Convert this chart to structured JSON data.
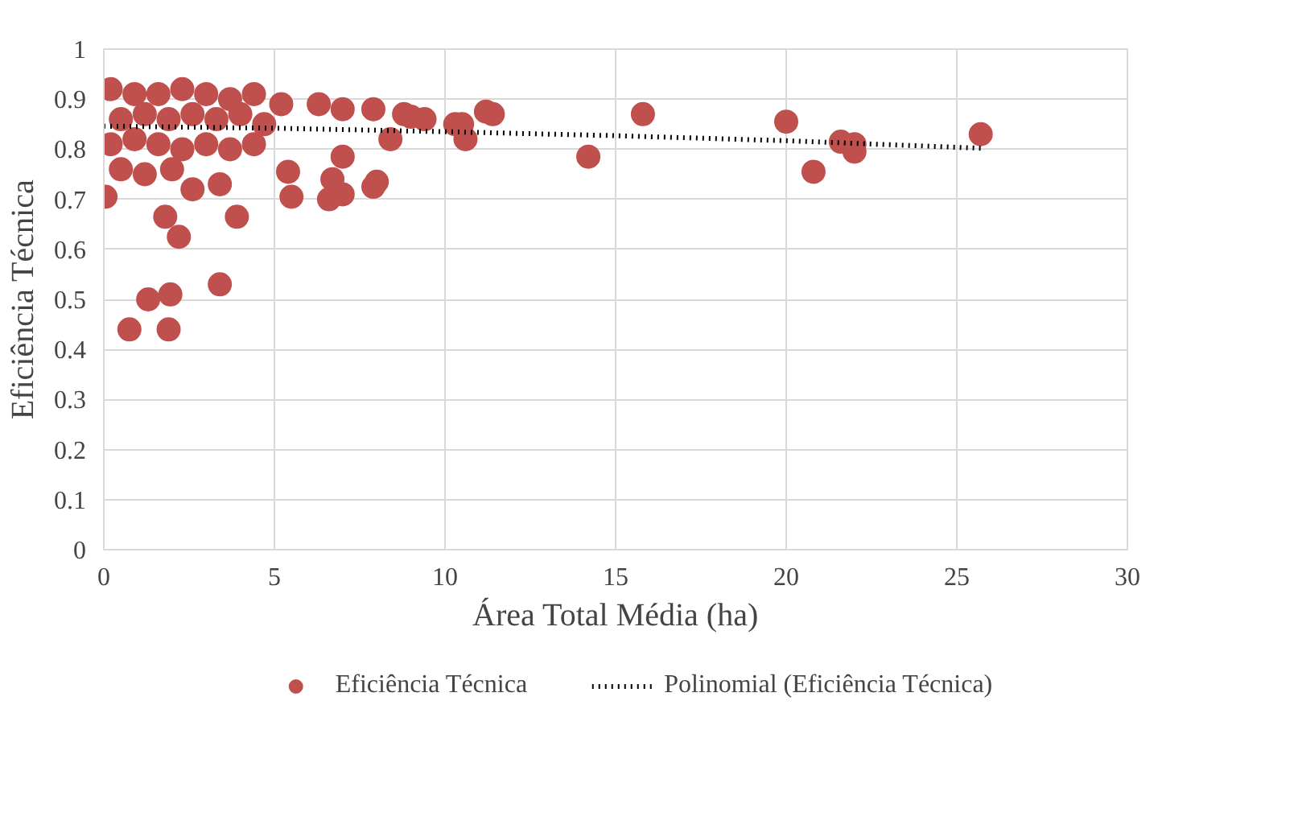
{
  "chart_data": {
    "type": "scatter",
    "xlabel": "Área Total Média (ha)",
    "ylabel": "Eficiência Técnica",
    "xlim": [
      0,
      30
    ],
    "xticks": [
      0,
      5,
      10,
      15,
      20,
      25,
      30
    ],
    "ylim": [
      0,
      1
    ],
    "yticks": [
      0,
      0.1,
      0.2,
      0.3,
      0.4,
      0.5,
      0.6,
      0.7,
      0.8,
      0.9,
      1
    ],
    "grid": true,
    "legend": "bottom",
    "series": [
      {
        "name": "Eficiência Técnica",
        "marker": "circle",
        "color": "#c0504d",
        "x": [
          0.05,
          0.75,
          1.9,
          1.3,
          1.95,
          3.4,
          1.8,
          2.2,
          3.9,
          2.6,
          3.4,
          5.5,
          6.6,
          7.0,
          7.9,
          8.0,
          6.7,
          5.4,
          7.0,
          8.4,
          10.6,
          14.2,
          15.8,
          20.0,
          20.8,
          21.6,
          22.0,
          22.0,
          25.7,
          11.2,
          11.4,
          10.3,
          10.5,
          9.4,
          9.0,
          8.8,
          7.9,
          7.0,
          6.3,
          5.2,
          0.2,
          0.9,
          1.6,
          2.3,
          3.0,
          3.7,
          4.4,
          0.5,
          1.2,
          1.9,
          2.6,
          3.3,
          4.0,
          4.7,
          0.2,
          0.9,
          1.6,
          2.3,
          3.0,
          3.7,
          4.4,
          0.5,
          1.2,
          2.0
        ],
        "values": [
          0.705,
          0.44,
          0.44,
          0.5,
          0.51,
          0.53,
          0.665,
          0.625,
          0.665,
          0.72,
          0.73,
          0.705,
          0.7,
          0.71,
          0.725,
          0.735,
          0.74,
          0.755,
          0.785,
          0.82,
          0.82,
          0.785,
          0.87,
          0.855,
          0.755,
          0.815,
          0.81,
          0.795,
          0.83,
          0.875,
          0.87,
          0.85,
          0.85,
          0.86,
          0.865,
          0.87,
          0.88,
          0.88,
          0.89,
          0.89,
          0.92,
          0.91,
          0.91,
          0.92,
          0.91,
          0.9,
          0.91,
          0.86,
          0.87,
          0.86,
          0.87,
          0.86,
          0.87,
          0.85,
          0.81,
          0.82,
          0.81,
          0.8,
          0.81,
          0.8,
          0.81,
          0.76,
          0.75,
          0.76
        ]
      },
      {
        "name": "Polinomial (Eficiência Técnica)",
        "type": "line",
        "line_style": "dotted",
        "color": "#000000",
        "x": [
          0,
          5,
          10,
          15,
          20,
          25.7
        ],
        "values": [
          0.846,
          0.842,
          0.835,
          0.827,
          0.817,
          0.802
        ]
      }
    ]
  }
}
